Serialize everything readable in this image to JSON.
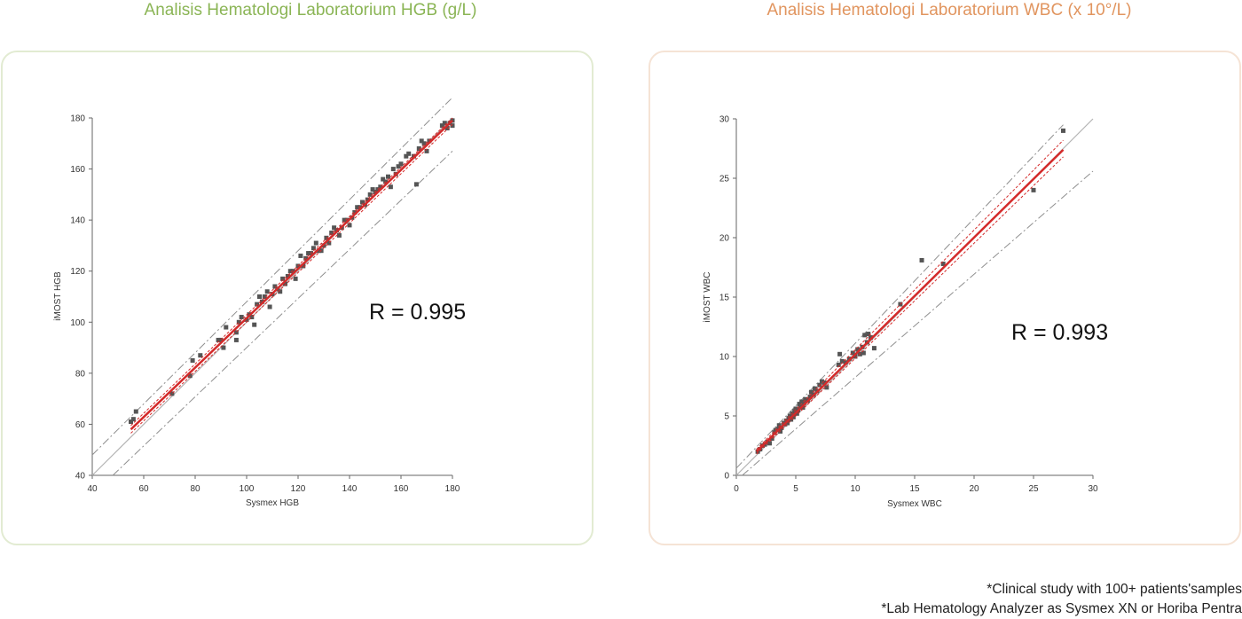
{
  "titles": {
    "hgb": "Analisis Hematologi Laboratorium HGB (g/L)",
    "wbc": "Analisis Hematologi Laboratorium WBC (x 10°/L)"
  },
  "colors": {
    "hgb_title": "#8bb556",
    "wbc_title": "#e1955f",
    "points": "#555555",
    "regression": "#d42a2a",
    "identity": "#b3b3b3",
    "limits": "#8f8f8f"
  },
  "footnotes": [
    "*Clinical study with 100+ patients'samples",
    "*Lab Hematology Analyzer as Sysmex XN or Horiba Pentra"
  ],
  "chart_data": [
    {
      "type": "scatter",
      "title": "Analisis Hematologi Laboratorium HGB (g/L)",
      "xlabel": "Sysmex HGB",
      "ylabel": "iMOST HGB",
      "xlim": [
        40,
        180
      ],
      "ylim": [
        40,
        180
      ],
      "xticks": [
        "40",
        "60",
        "80",
        "100",
        "120",
        "140",
        "160",
        "180"
      ],
      "yticks": [
        "40",
        "60",
        "80",
        "100",
        "120",
        "140",
        "160",
        "180"
      ],
      "grid": false,
      "annotation": "R = 0.995",
      "regression": {
        "x": [
          55,
          180
        ],
        "y": [
          58,
          179
        ]
      },
      "confidence_band": {
        "upper": {
          "x": [
            55,
            180
          ],
          "y": [
            59.5,
            180
          ]
        },
        "lower": {
          "x": [
            55,
            180
          ],
          "y": [
            56.5,
            177.5
          ]
        }
      },
      "identity_line": {
        "x": [
          40,
          180
        ],
        "y": [
          40,
          180
        ]
      },
      "limit_lines": [
        {
          "name": "upper",
          "x": [
            40,
            180
          ],
          "y": [
            48,
            188
          ]
        },
        {
          "name": "lower",
          "x": [
            48,
            180
          ],
          "y": [
            40,
            167
          ]
        }
      ],
      "points": [
        [
          55,
          61
        ],
        [
          56,
          62
        ],
        [
          57,
          65
        ],
        [
          71,
          72
        ],
        [
          78,
          79
        ],
        [
          79,
          85
        ],
        [
          82,
          87
        ],
        [
          89,
          93
        ],
        [
          90,
          93
        ],
        [
          91,
          90
        ],
        [
          92,
          98
        ],
        [
          96,
          93
        ],
        [
          96,
          96
        ],
        [
          97,
          100
        ],
        [
          98,
          102
        ],
        [
          100,
          101
        ],
        [
          101,
          103
        ],
        [
          102,
          102
        ],
        [
          103,
          99
        ],
        [
          104,
          107
        ],
        [
          105,
          110
        ],
        [
          106,
          108
        ],
        [
          107,
          110
        ],
        [
          108,
          112
        ],
        [
          109,
          106
        ],
        [
          110,
          111
        ],
        [
          111,
          114
        ],
        [
          112,
          113
        ],
        [
          113,
          112
        ],
        [
          114,
          117
        ],
        [
          115,
          115
        ],
        [
          116,
          118
        ],
        [
          117,
          120
        ],
        [
          118,
          120
        ],
        [
          119,
          117
        ],
        [
          120,
          122
        ],
        [
          121,
          126
        ],
        [
          122,
          122
        ],
        [
          123,
          125
        ],
        [
          124,
          127
        ],
        [
          125,
          127
        ],
        [
          126,
          129
        ],
        [
          127,
          131
        ],
        [
          128,
          128
        ],
        [
          129,
          128
        ],
        [
          130,
          130
        ],
        [
          131,
          133
        ],
        [
          132,
          131
        ],
        [
          133,
          135
        ],
        [
          134,
          137
        ],
        [
          135,
          136
        ],
        [
          136,
          134
        ],
        [
          137,
          137
        ],
        [
          138,
          140
        ],
        [
          139,
          140
        ],
        [
          140,
          138
        ],
        [
          141,
          141
        ],
        [
          142,
          143
        ],
        [
          143,
          145
        ],
        [
          144,
          145
        ],
        [
          145,
          147
        ],
        [
          146,
          146
        ],
        [
          147,
          148
        ],
        [
          148,
          150
        ],
        [
          149,
          152
        ],
        [
          150,
          151
        ],
        [
          151,
          152
        ],
        [
          152,
          153
        ],
        [
          153,
          156
        ],
        [
          154,
          155
        ],
        [
          155,
          157
        ],
        [
          156,
          153
        ],
        [
          157,
          160
        ],
        [
          158,
          158
        ],
        [
          159,
          161
        ],
        [
          160,
          162
        ],
        [
          162,
          165
        ],
        [
          163,
          166
        ],
        [
          165,
          165
        ],
        [
          166,
          154
        ],
        [
          167,
          168
        ],
        [
          168,
          171
        ],
        [
          169,
          170
        ],
        [
          170,
          167
        ],
        [
          171,
          171
        ],
        [
          176,
          177
        ],
        [
          177,
          178
        ],
        [
          178,
          176
        ],
        [
          179,
          178
        ],
        [
          180,
          179
        ],
        [
          180,
          177
        ]
      ]
    },
    {
      "type": "scatter",
      "title": "Analisis Hematologi Laboratorium WBC (x 10°/L)",
      "xlabel": "Sysmex WBC",
      "ylabel": "iMOST WBC",
      "xlim": [
        0,
        30
      ],
      "ylim": [
        0,
        30
      ],
      "xticks": [
        "0",
        "5",
        "10",
        "15",
        "20",
        "25",
        "30"
      ],
      "yticks": [
        "0",
        "5",
        "10",
        "15",
        "20",
        "25",
        "30"
      ],
      "grid": false,
      "annotation": "R = 0.993",
      "regression": {
        "x": [
          1.7,
          27.5
        ],
        "y": [
          2.0,
          27.4
        ]
      },
      "confidence_band": {
        "upper": {
          "x": [
            1.7,
            27.5
          ],
          "y": [
            2.2,
            28.2
          ]
        },
        "lower": {
          "x": [
            1.7,
            27.5
          ],
          "y": [
            1.8,
            26.8
          ]
        }
      },
      "identity_line": {
        "x": [
          0,
          30
        ],
        "y": [
          0,
          30
        ]
      },
      "limit_lines": [
        {
          "name": "upper",
          "x": [
            0,
            27.5
          ],
          "y": [
            0.6,
            29.5
          ]
        },
        {
          "name": "lower",
          "x": [
            0.5,
            30
          ],
          "y": [
            0,
            25.6
          ]
        }
      ],
      "points": [
        [
          1.8,
          2.0
        ],
        [
          2.0,
          2.2
        ],
        [
          2.2,
          2.5
        ],
        [
          2.4,
          2.6
        ],
        [
          2.6,
          2.8
        ],
        [
          2.8,
          2.7
        ],
        [
          3.0,
          3.1
        ],
        [
          3.2,
          3.6
        ],
        [
          3.3,
          3.8
        ],
        [
          3.5,
          3.9
        ],
        [
          3.6,
          4.2
        ],
        [
          3.7,
          3.7
        ],
        [
          3.8,
          4.0
        ],
        [
          4.0,
          4.4
        ],
        [
          4.1,
          4.3
        ],
        [
          4.2,
          4.6
        ],
        [
          4.3,
          4.4
        ],
        [
          4.4,
          4.8
        ],
        [
          4.5,
          5.0
        ],
        [
          4.6,
          4.7
        ],
        [
          4.7,
          5.2
        ],
        [
          4.8,
          4.9
        ],
        [
          4.9,
          5.4
        ],
        [
          5.0,
          5.6
        ],
        [
          5.1,
          5.2
        ],
        [
          5.2,
          5.5
        ],
        [
          5.3,
          6.0
        ],
        [
          5.4,
          5.8
        ],
        [
          5.5,
          6.2
        ],
        [
          5.6,
          5.7
        ],
        [
          5.7,
          6.1
        ],
        [
          5.8,
          6.4
        ],
        [
          6.0,
          6.3
        ],
        [
          6.2,
          6.6
        ],
        [
          6.3,
          7.0
        ],
        [
          6.5,
          6.8
        ],
        [
          6.6,
          7.3
        ],
        [
          6.8,
          7.1
        ],
        [
          7.0,
          7.6
        ],
        [
          7.2,
          7.9
        ],
        [
          7.4,
          7.8
        ],
        [
          7.6,
          7.4
        ],
        [
          8.6,
          9.3
        ],
        [
          8.7,
          10.2
        ],
        [
          8.9,
          9.6
        ],
        [
          9.2,
          9.5
        ],
        [
          9.5,
          9.8
        ],
        [
          9.8,
          10.3
        ],
        [
          10.0,
          10.0
        ],
        [
          10.2,
          10.6
        ],
        [
          10.4,
          10.2
        ],
        [
          10.6,
          10.8
        ],
        [
          10.7,
          10.3
        ],
        [
          10.8,
          11.8
        ],
        [
          11.0,
          11.2
        ],
        [
          11.1,
          11.9
        ],
        [
          11.3,
          11.6
        ],
        [
          11.6,
          10.7
        ],
        [
          13.8,
          14.4
        ],
        [
          15.6,
          18.1
        ],
        [
          17.4,
          17.8
        ],
        [
          25.0,
          24.0
        ],
        [
          27.5,
          29.0
        ]
      ]
    }
  ]
}
